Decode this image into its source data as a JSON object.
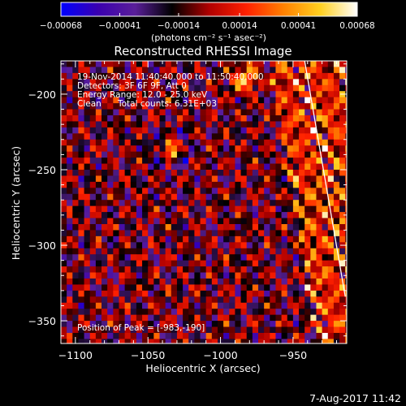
{
  "chart_data": {
    "type": "heatmap",
    "title": "Reconstructed RHESSI Image",
    "xlabel": "Heliocentric X (arcsec)",
    "ylabel": "Heliocentric Y (arcsec)",
    "xlim": [
      -1110,
      -913
    ],
    "ylim": [
      -365,
      -178
    ],
    "x_ticks": [
      -1100,
      -1050,
      -1000,
      -950
    ],
    "x_tick_labels": [
      "−1100",
      "−1050",
      "−1000",
      "−950"
    ],
    "y_ticks": [
      -200,
      -250,
      -300,
      -350
    ],
    "y_tick_labels": [
      "−200",
      "−250",
      "−300",
      "−350"
    ],
    "colorbar": {
      "ticks": [
        -0.00068,
        -0.00041,
        -0.00014,
        0.00014,
        0.00041,
        0.00068
      ],
      "tick_labels": [
        "−0.00068",
        "−0.00041",
        "−0.00014",
        "0.00014",
        "0.00041",
        "0.00068"
      ],
      "units": "(photons cm⁻² s⁻¹ asec⁻²)",
      "colors": [
        "#0000ff",
        "#3a00b0",
        "#5a1f9a",
        "#000000",
        "#b00000",
        "#ff2000",
        "#ff8000",
        "#ffd020",
        "#ffffff"
      ]
    },
    "annotations": [
      "19-Nov-2014 11:40:40.000 to 11:50:40.000",
      "Detectors: 3F 6F 9F, Att 0",
      "Energy Range: 12.0 - 25.0 keV",
      "Clean",
      "Total counts: 6.31E+03",
      "Position of Peak = [-983,-190]"
    ],
    "peak": {
      "x": -983,
      "y": -190
    },
    "limb_line": {
      "x": [
        -942,
        -914
      ],
      "y": [
        -178,
        -334
      ]
    },
    "grid": false,
    "pixel_size_arcsec": 4
  },
  "footer": {
    "date": "7-Aug-2017 11:42"
  }
}
